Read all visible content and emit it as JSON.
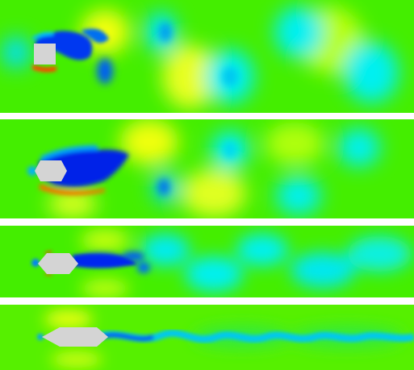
{
  "figure": {
    "panels": [
      {
        "id": "square",
        "body_shape": "square"
      },
      {
        "id": "hexagon",
        "body_shape": "hexagon"
      },
      {
        "id": "elongated-hexagon",
        "body_shape": "elongated hexagon"
      },
      {
        "id": "slender-hexagon",
        "body_shape": "slender pointed hexagon"
      }
    ],
    "colormap": {
      "low": "#0018e6",
      "mid_low": "#00f0f0",
      "mid": "#44ee00",
      "mid_high": "#f0ff00",
      "high": "#ff2200"
    },
    "body_color": "#d4d4d4",
    "background_color": "#ffffff"
  }
}
